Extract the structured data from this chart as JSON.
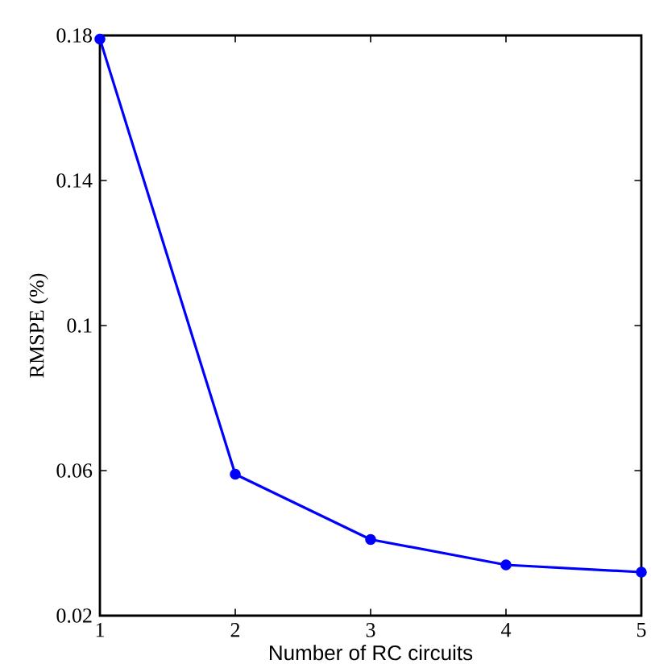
{
  "chart_data": {
    "type": "line",
    "xlabel": "Number of RC circuits",
    "ylabel": "RMSPE (%)",
    "x": [
      1,
      2,
      3,
      4,
      5
    ],
    "series": [
      {
        "color": "#0000ff",
        "values": [
          0.179,
          0.059,
          0.041,
          0.034,
          0.032
        ]
      }
    ],
    "xlim": [
      1,
      5
    ],
    "ylim": [
      0.02,
      0.18
    ],
    "xticks": [
      1,
      2,
      3,
      4,
      5
    ],
    "yticks": [
      0.02,
      0.06,
      0.1,
      0.14,
      0.18
    ],
    "marker": "circle",
    "line_style": "solid"
  }
}
